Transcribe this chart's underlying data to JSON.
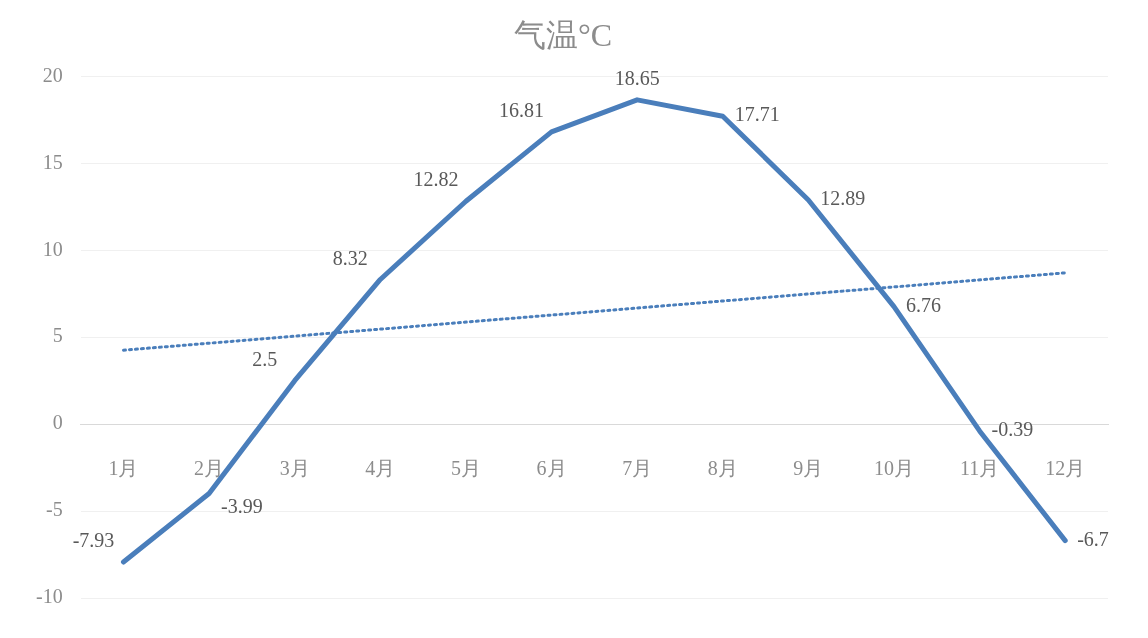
{
  "chart_data": {
    "type": "line",
    "title": "气温°C",
    "categories": [
      "1月",
      "2月",
      "3月",
      "4月",
      "5月",
      "6月",
      "7月",
      "8月",
      "9月",
      "10月",
      "11月",
      "12月"
    ],
    "series": [
      {
        "color": "#4a7ebb",
        "values": [
          -7.93,
          -3.99,
          2.5,
          8.32,
          12.82,
          16.81,
          18.65,
          17.71,
          12.89,
          6.76,
          -0.39,
          -6.7
        ],
        "value_labels": [
          "-7.93",
          "-3.99",
          "2.5",
          "8.32",
          "12.82",
          "16.81",
          "18.65",
          "17.71",
          "12.89",
          "6.76",
          "-0.39",
          "-6.7"
        ],
        "line_style": "solid"
      },
      {
        "type": "line",
        "color": "#4a7ebb",
        "x": [
          "1月",
          "12月"
        ],
        "values": [
          4.25,
          8.7
        ],
        "line_style": "dotted"
      }
    ],
    "ylim": [
      -10,
      20
    ],
    "yticks": [
      -10,
      -5,
      0,
      5,
      10,
      15,
      20
    ],
    "grid": "y",
    "legend": false,
    "marker": "none"
  }
}
